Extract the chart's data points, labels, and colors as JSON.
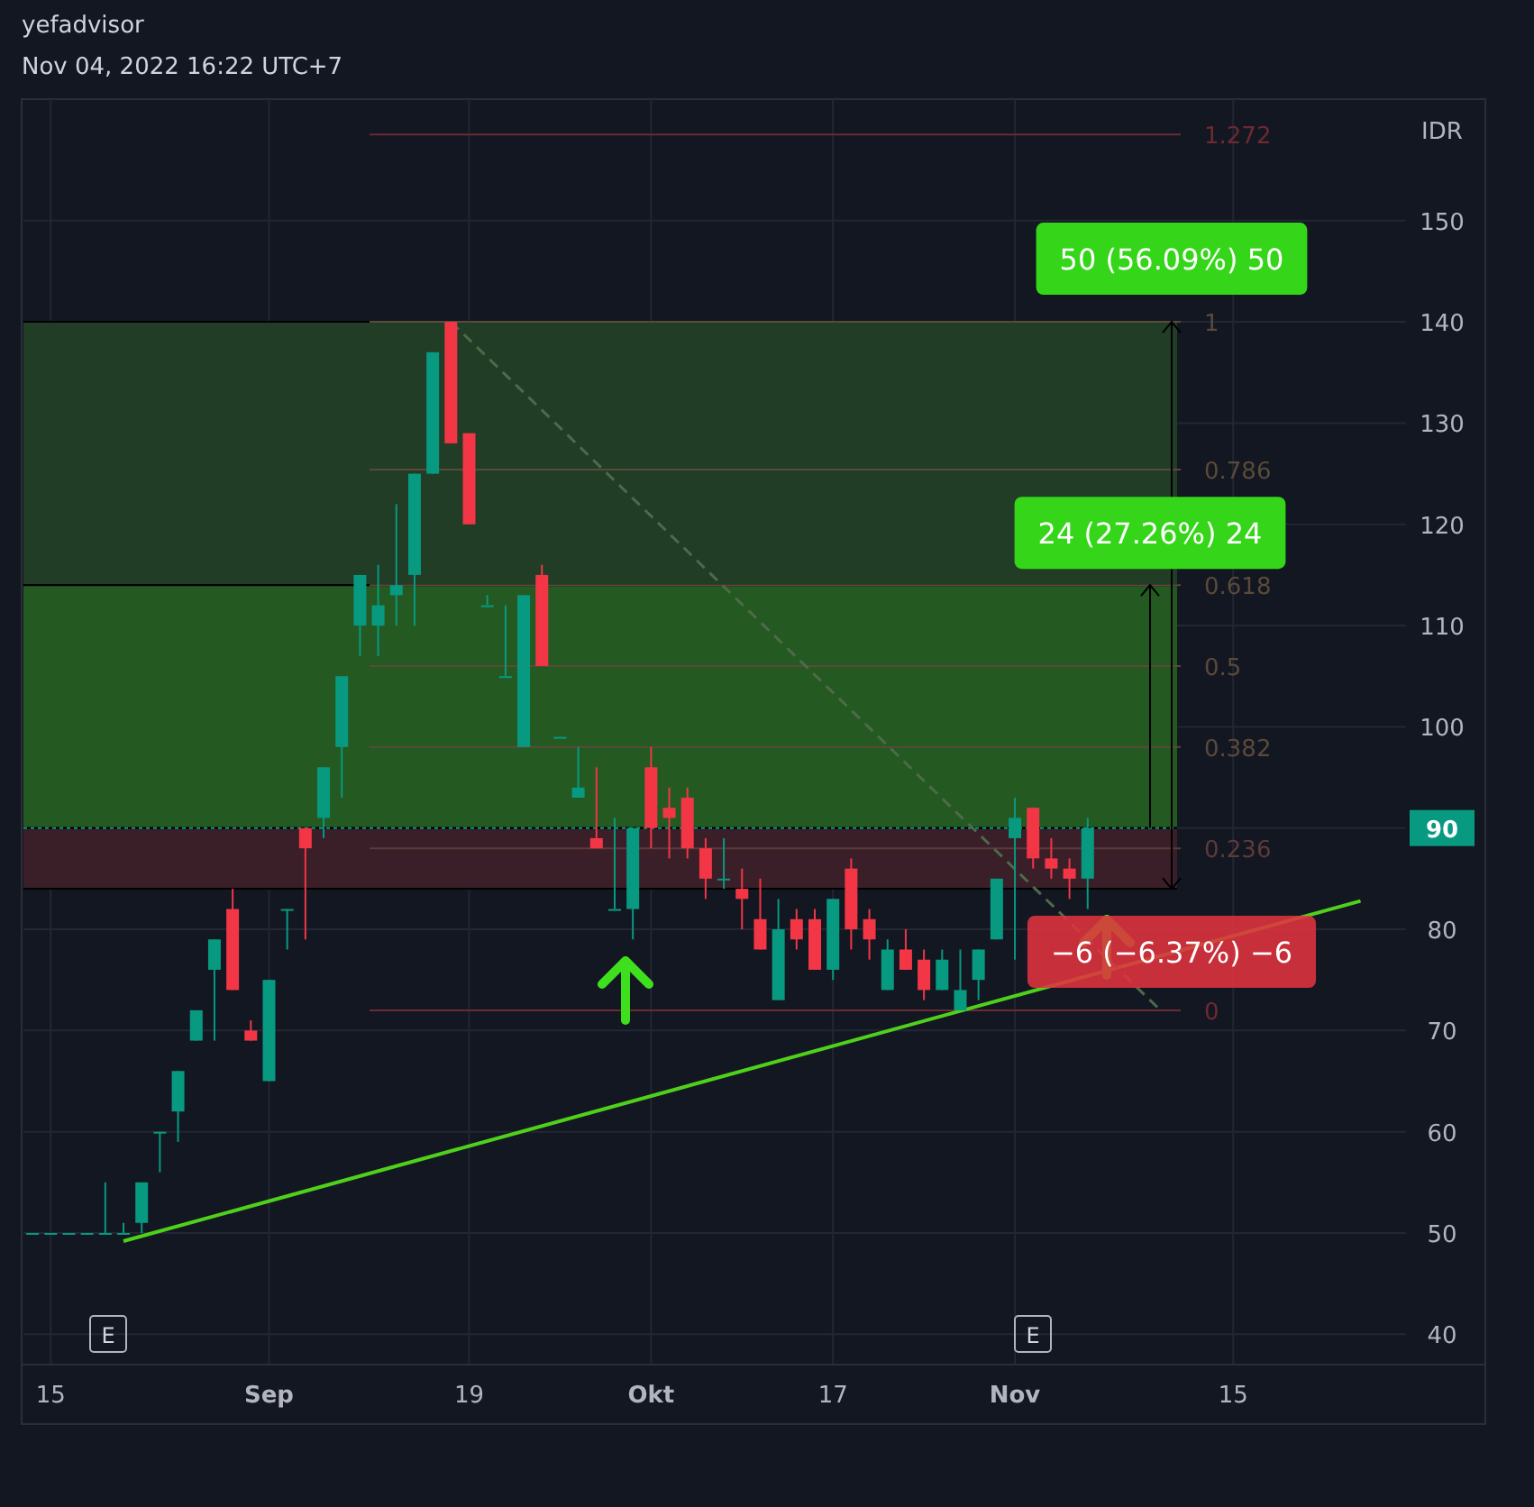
{
  "chart_data": {
    "type": "candlestick",
    "title": "yefadvisor",
    "subtitle": "Nov 04, 2022 16:22 UTC+7",
    "ylabel": "IDR",
    "categories": [
      null,
      "15",
      null,
      null,
      null,
      null,
      null,
      null,
      null,
      null,
      null,
      null,
      null,
      "Sep",
      null,
      null,
      null,
      null,
      null,
      null,
      null,
      null,
      null,
      null,
      "19",
      null,
      null,
      null,
      null,
      null,
      null,
      null,
      null,
      null,
      "Okt",
      null,
      null,
      null,
      null,
      null,
      null,
      null,
      null,
      null,
      "17",
      null,
      null,
      null,
      null,
      null,
      null,
      null,
      null,
      null,
      "Nov",
      null,
      null,
      null,
      null,
      null,
      null,
      null,
      null,
      null,
      null,
      null,
      "15",
      null,
      null,
      null,
      null,
      null,
      null,
      null,
      null,
      null
    ],
    "ohlc": [
      [
        50,
        50,
        50,
        50
      ],
      [
        50,
        50,
        50,
        50
      ],
      [
        50,
        50,
        50,
        50
      ],
      [
        50,
        50,
        50,
        50
      ],
      [
        50,
        55,
        50,
        50
      ],
      [
        50,
        51,
        50,
        50
      ],
      [
        51,
        55,
        50,
        55
      ],
      [
        60,
        60,
        56,
        60
      ],
      [
        62,
        66,
        59,
        66
      ],
      [
        69,
        72,
        69,
        72
      ],
      [
        76,
        79,
        69,
        79
      ],
      [
        82,
        84,
        74,
        74
      ],
      [
        70,
        71,
        69,
        69
      ],
      [
        65,
        75,
        65,
        75
      ],
      [
        82,
        82,
        78,
        82
      ],
      [
        90,
        90,
        79,
        88
      ],
      [
        91,
        96,
        89,
        96
      ],
      [
        98,
        105,
        93,
        105
      ],
      [
        110,
        115,
        107,
        115
      ],
      [
        110,
        116,
        107,
        112
      ],
      [
        113,
        122,
        110,
        114
      ],
      [
        115,
        125,
        110,
        125
      ],
      [
        125,
        137,
        125,
        137
      ],
      [
        140,
        140,
        128,
        128
      ],
      [
        129,
        129,
        120,
        120
      ],
      [
        112,
        113,
        112,
        112
      ],
      [
        105,
        112,
        105,
        105
      ],
      [
        98,
        113,
        98,
        113
      ],
      [
        115,
        116,
        106,
        106
      ],
      [
        99,
        99,
        99,
        99
      ],
      [
        93,
        98,
        93,
        94
      ],
      [
        89,
        96,
        88,
        88
      ],
      [
        82,
        91,
        82,
        82
      ],
      [
        82,
        90,
        79,
        90
      ],
      [
        96,
        98,
        88,
        90
      ],
      [
        92,
        94,
        87,
        91
      ],
      [
        93,
        94,
        87,
        88
      ],
      [
        88,
        89,
        83,
        85
      ],
      [
        85,
        89,
        84,
        85
      ],
      [
        84,
        86,
        80,
        83
      ],
      [
        81,
        85,
        78,
        78
      ],
      [
        73,
        83,
        73,
        80
      ],
      [
        81,
        82,
        78,
        79
      ],
      [
        81,
        82,
        76,
        76
      ],
      [
        76,
        83,
        75,
        83
      ],
      [
        86,
        87,
        78,
        80
      ],
      [
        81,
        82,
        77,
        79
      ],
      [
        74,
        79,
        74,
        78
      ],
      [
        78,
        80,
        76,
        76
      ],
      [
        77,
        78,
        73,
        74
      ],
      [
        74,
        78,
        74,
        77
      ],
      [
        72,
        78,
        72,
        74
      ],
      [
        75,
        78,
        73,
        78
      ],
      [
        79,
        85,
        79,
        85
      ],
      [
        89,
        93,
        77,
        91
      ],
      [
        92,
        92,
        86,
        87
      ],
      [
        87,
        89,
        85,
        86
      ],
      [
        86,
        87,
        83,
        85
      ],
      [
        85,
        91,
        82,
        90
      ],
      null,
      null,
      null,
      null,
      null,
      null,
      null,
      null,
      null,
      null,
      null,
      null,
      null,
      null,
      null,
      null,
      null
    ],
    "colors": [
      "#089981",
      "#089981",
      "#089981",
      "#089981",
      "#089981",
      "#089981",
      "#089981",
      "#089981",
      "#089981",
      "#089981",
      "#089981",
      "#f23645",
      "#f23645",
      "#089981",
      "#089981",
      "#f23645",
      "#089981",
      "#089981",
      "#089981",
      "#089981",
      "#089981",
      "#089981",
      "#089981",
      "#f23645",
      "#f23645",
      "#089981",
      "#089981",
      "#089981",
      "#f23645",
      "#089981",
      "#089981",
      "#f23645",
      "#089981",
      "#089981",
      "#f23645",
      "#f23645",
      "#f23645",
      "#f23645",
      "#089981",
      "#f23645",
      "#f23645",
      "#089981",
      "#f23645",
      "#f23645",
      "#089981",
      "#f23645",
      "#f23645",
      "#089981",
      "#f23645",
      "#f23645",
      "#089981",
      "#089981",
      "#089981",
      "#089981",
      "#089981",
      "#f23645",
      "#f23645",
      "#f23645",
      "#089981",
      null,
      null,
      null,
      null,
      null,
      null,
      null,
      null,
      null,
      null,
      null,
      null,
      null,
      null,
      null,
      null,
      null
    ],
    "series": [
      {
        "type": "line",
        "color": "#4fd11b",
        "values": [
          null,
          null,
          null,
          null,
          null,
          49.2,
          null,
          null,
          null,
          null,
          null,
          null,
          null,
          null,
          null,
          null,
          null,
          null,
          null,
          null,
          null,
          null,
          null,
          null,
          null,
          null,
          null,
          null,
          null,
          null,
          null,
          null,
          null,
          null,
          null,
          null,
          null,
          null,
          null,
          null,
          null,
          null,
          null,
          null,
          null,
          null,
          null,
          null,
          null,
          null,
          null,
          null,
          null,
          null,
          null,
          null,
          null,
          null,
          null,
          null,
          null,
          null,
          null,
          null,
          null,
          null,
          null,
          null,
          null,
          null,
          null,
          null,
          null,
          82.8,
          null,
          null
        ]
      },
      {
        "type": "line",
        "color": "#4e6a4a",
        "line_style": "dashed",
        "values": [
          null,
          null,
          null,
          null,
          null,
          null,
          null,
          null,
          null,
          null,
          null,
          null,
          null,
          null,
          null,
          null,
          null,
          null,
          null,
          null,
          null,
          null,
          null,
          140,
          null,
          null,
          null,
          null,
          null,
          null,
          null,
          null,
          null,
          null,
          null,
          null,
          null,
          null,
          null,
          null,
          null,
          null,
          null,
          null,
          null,
          null,
          null,
          null,
          null,
          null,
          null,
          null,
          null,
          null,
          null,
          null,
          null,
          null,
          null,
          null,
          null,
          null,
          72,
          null,
          null,
          null,
          null,
          null,
          null,
          null,
          null,
          null,
          null,
          null,
          null,
          null
        ]
      }
    ],
    "ylim": [
      37,
      162
    ],
    "yticks": [
      40,
      50,
      60,
      70,
      80,
      90,
      100,
      110,
      120,
      130,
      140,
      150
    ],
    "grid": true,
    "bands": [
      {
        "axis": "y",
        "from": 114,
        "to": 140,
        "color": "#213d26"
      },
      {
        "axis": "y",
        "from": 90,
        "to": 114,
        "color": "#245a22"
      },
      {
        "axis": "y",
        "from": 84,
        "to": 90,
        "color": "#3a1f29"
      }
    ],
    "ref_lines": [
      {
        "axis": "y",
        "value": 90,
        "label": "90",
        "color": "#089981",
        "line_style": "dotted"
      },
      {
        "axis": "y",
        "value": 158.5,
        "color": "#6e2a32"
      },
      {
        "axis": "y",
        "value": 140,
        "color": "#5a4a3a"
      },
      {
        "axis": "y",
        "value": 125.4,
        "color": "#5a4a3a"
      },
      {
        "axis": "y",
        "value": 114,
        "color": "#5a4a3a"
      },
      {
        "axis": "y",
        "value": 106,
        "color": "#5a4a3a"
      },
      {
        "axis": "y",
        "value": 98,
        "color": "#5a4a3a"
      },
      {
        "axis": "y",
        "value": 88,
        "color": "#5e3a3a"
      },
      {
        "axis": "y",
        "value": 72,
        "color": "#6e2a32"
      }
    ],
    "annotations": [
      {
        "text": "50 (56.09%) 50",
        "y": 140
      },
      {
        "text": "24 (27.26%) 24",
        "y": 114
      },
      {
        "text": "−6 (−6.37%) −6",
        "y": 84
      },
      "E",
      "E",
      "1.272",
      "1",
      "0.786",
      "0.618",
      "0.5",
      "0.382",
      "0.236",
      "0"
    ]
  }
}
